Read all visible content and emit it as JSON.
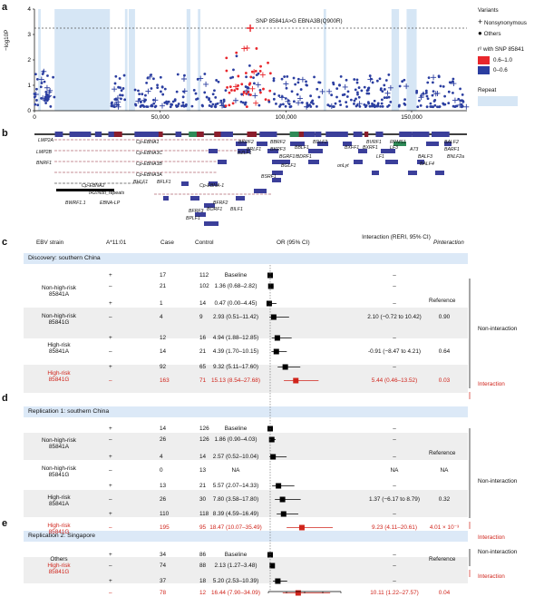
{
  "panels": {
    "a": "a",
    "b": "b",
    "c": "c",
    "d": "d",
    "e": "e"
  },
  "panel_a": {
    "ylabel": "−log10P",
    "yticks": [
      "0",
      "1",
      "2",
      "3",
      "4"
    ],
    "xticks": [
      "0",
      "50,000",
      "100,000",
      "150,000"
    ],
    "snp_label": "SNP 85841A>G EBNA3B(Q900R)",
    "legend_variants_title": "Variants",
    "legend_nonsyn": "Nonsynonymous",
    "legend_others": "Others",
    "legend_r2_title": "r² with SNP 85841",
    "legend_r2_high": "0.6–1.0",
    "legend_r2_low": "0–0.6",
    "legend_repeat": "Repeat",
    "colors": {
      "high": "#e8262c",
      "low": "#2b3ea0",
      "repeat": "#d6e6f5",
      "gene": "#3b3f9a"
    }
  },
  "panel_b": {
    "genes": [
      "LMP2A",
      "LMP2B",
      "BNRF1",
      "Cp-EBNA1",
      "Cp-EBNA3C",
      "Cp-EBNA3B",
      "Cp-EBNA3A",
      "Cp-EBNA2",
      "BHLF1",
      "BFLF1",
      "IR2/NotI_repeats",
      "Cp-EBNA-1",
      "BWRF1.1",
      "EBNA-LP",
      "BFRF2",
      "BFRF3",
      "BORF1",
      "BILF1",
      "BPLF1",
      "BSRF1",
      "BKRF2",
      "BBRF2",
      "BBLF1",
      "BRLF1",
      "BKRF3",
      "BZLF1",
      "BGRF1/BDRF1",
      "BALF2",
      "BGLF1",
      "BDLF2",
      "BVRF1",
      "BXRF1",
      "RPMS1",
      "LF3",
      "BXFF1",
      "onLyt",
      "LF1",
      "A73",
      "BALF3",
      "BALF4",
      "BARF1",
      "BNLF2a"
    ]
  },
  "table_header": {
    "strain": "EBV strain",
    "allele": "A*11:01",
    "case": "Case",
    "control": "Control",
    "or": "OR (95% CI)",
    "interaction": "Interaction (RERI, 95% CI)",
    "p": "Pinteraction"
  },
  "forest_axis": {
    "ticks": [
      "0",
      "10",
      "20",
      "30",
      "40"
    ],
    "range": [
      0,
      40
    ]
  },
  "sections": [
    {
      "title": "Discovery: southern China"
    },
    {
      "title": "Replication 1: southern China"
    },
    {
      "title": "Replication 2: Singapore"
    }
  ],
  "group_labels": {
    "nh_a": "Non-high-risk\n85841A",
    "nh_g": "Non-high-risk\n85841G",
    "h_a": "High-risk\n85841A",
    "h_g": "High-risk\n85841G",
    "others": "Others"
  },
  "side_labels": {
    "noninteraction": "Non-interaction",
    "interaction": "Interaction",
    "reference": "Reference"
  },
  "rows": [
    {
      "sec": 0,
      "allele": "+",
      "case": "17",
      "control": "112",
      "or": "Baseline",
      "inter": "–",
      "p": "",
      "est": 1,
      "lo": 1,
      "hi": 1,
      "red": false
    },
    {
      "sec": 0,
      "allele": "–",
      "case": "21",
      "control": "102",
      "or": "1.36 (0.68–2.82)",
      "inter": "–",
      "p": "",
      "est": 1.36,
      "lo": 0.68,
      "hi": 2.82,
      "red": false
    },
    {
      "sec": 0,
      "allele": "+",
      "case": "1",
      "control": "14",
      "or": "0.47 (0.00–4.45)",
      "inter": "–",
      "p": "",
      "est": 0.47,
      "lo": 0,
      "hi": 4.45,
      "red": false
    },
    {
      "sec": 0,
      "allele": "–",
      "case": "4",
      "control": "9",
      "or": "2.93 (0.51–11.42)",
      "inter": "2.10 (−0.72 to 10.42)",
      "p": "0.90",
      "est": 2.93,
      "lo": 0.51,
      "hi": 11.42,
      "red": false
    },
    {
      "sec": 0,
      "allele": "+",
      "case": "12",
      "control": "16",
      "or": "4.94 (1.88–12.85)",
      "inter": "–",
      "p": "",
      "est": 4.94,
      "lo": 1.88,
      "hi": 12.85,
      "red": false
    },
    {
      "sec": 0,
      "allele": "–",
      "case": "14",
      "control": "21",
      "or": "4.39 (1.70–10.15)",
      "inter": "-0.91 (−8.47 to 4.21)",
      "p": "0.64",
      "est": 4.39,
      "lo": 1.7,
      "hi": 10.15,
      "red": false
    },
    {
      "sec": 0,
      "allele": "+",
      "case": "92",
      "control": "65",
      "or": "9.32 (5.11–17.60)",
      "inter": "–",
      "p": "",
      "est": 9.32,
      "lo": 5.11,
      "hi": 17.6,
      "red": false
    },
    {
      "sec": 0,
      "allele": "–",
      "case": "163",
      "control": "71",
      "or": "15.13 (8.54–27.68)",
      "inter": "5.44 (0.46–13.52)",
      "p": "0.03",
      "est": 15.13,
      "lo": 8.54,
      "hi": 27.68,
      "red": true
    },
    {
      "sec": 1,
      "allele": "+",
      "case": "14",
      "control": "126",
      "or": "Baseline",
      "inter": "–",
      "p": "",
      "est": 1,
      "lo": 1,
      "hi": 1,
      "red": false
    },
    {
      "sec": 1,
      "allele": "–",
      "case": "26",
      "control": "126",
      "or": "1.86 (0.90–4.03)",
      "inter": "–",
      "p": "",
      "est": 1.86,
      "lo": 0.9,
      "hi": 4.03,
      "red": false
    },
    {
      "sec": 1,
      "allele": "+",
      "case": "4",
      "control": "14",
      "or": "2.57 (0.52–10.04)",
      "inter": "–",
      "p": "",
      "est": 2.57,
      "lo": 0.52,
      "hi": 10.04,
      "red": false
    },
    {
      "sec": 1,
      "allele": "–",
      "case": "0",
      "control": "13",
      "or": "NA",
      "inter": "NA",
      "p": "NA",
      "est": null,
      "lo": null,
      "hi": null,
      "red": false
    },
    {
      "sec": 1,
      "allele": "+",
      "case": "13",
      "control": "21",
      "or": "5.57 (2.07–14.33)",
      "inter": "–",
      "p": "",
      "est": 5.57,
      "lo": 2.07,
      "hi": 14.33,
      "red": false
    },
    {
      "sec": 1,
      "allele": "–",
      "case": "26",
      "control": "30",
      "or": "7.80 (3.58–17.80)",
      "inter": "1.37 (−6.17 to 8.79)",
      "p": "0.32",
      "est": 7.8,
      "lo": 3.58,
      "hi": 17.8,
      "red": false
    },
    {
      "sec": 1,
      "allele": "+",
      "case": "110",
      "control": "118",
      "or": "8.39 (4.59–16.49)",
      "inter": "–",
      "p": "",
      "est": 8.39,
      "lo": 4.59,
      "hi": 16.49,
      "red": false
    },
    {
      "sec": 1,
      "allele": "–",
      "case": "195",
      "control": "95",
      "or": "18.47 (10.07–35.49)",
      "inter": "9.23 (4.11–20.61)",
      "p": "4.01 × 10⁻³",
      "est": 18.47,
      "lo": 10.07,
      "hi": 35.49,
      "red": true
    },
    {
      "sec": 2,
      "allele": "+",
      "case": "34",
      "control": "86",
      "or": "Baseline",
      "inter": "–",
      "p": "",
      "est": 1,
      "lo": 1,
      "hi": 1,
      "red": false
    },
    {
      "sec": 2,
      "allele": "–",
      "case": "74",
      "control": "88",
      "or": "2.13 (1.27–3.48)",
      "inter": "–",
      "p": "",
      "est": 2.13,
      "lo": 1.27,
      "hi": 3.48,
      "red": false
    },
    {
      "sec": 2,
      "allele": "+",
      "case": "37",
      "control": "18",
      "or": "5.20 (2.53–10.39)",
      "inter": "–",
      "p": "",
      "est": 5.2,
      "lo": 2.53,
      "hi": 10.39,
      "red": false
    },
    {
      "sec": 2,
      "allele": "–",
      "case": "78",
      "control": "12",
      "or": "16.44 (7.90–34.09)",
      "inter": "10.11 (1.22–27.57)",
      "p": "0.04",
      "est": 16.44,
      "lo": 7.9,
      "hi": 34.09,
      "red": true
    }
  ],
  "chart_data": {
    "type": "scatter",
    "title": "",
    "xlabel": "",
    "ylabel": "−log10P",
    "xlim": [
      0,
      172000
    ],
    "ylim": [
      0,
      4
    ],
    "threshold_label": "SNP 85841A>G EBNA3B(Q900R)",
    "repeat_regions": [
      [
        1500,
        2500
      ],
      [
        8000,
        30000
      ],
      [
        36000,
        37000
      ],
      [
        37500,
        40000
      ],
      [
        60500,
        62000
      ],
      [
        65000,
        66000
      ],
      [
        115000,
        116000
      ],
      [
        142000,
        145000
      ],
      [
        148000,
        152000
      ]
    ],
    "highlight_point": {
      "x": 85841,
      "y": 3.25
    },
    "forest": [
      {
        "group": "Discovery",
        "or": [
          1,
          1.36,
          0.47,
          2.93,
          4.94,
          4.39,
          9.32,
          15.13
        ]
      },
      {
        "group": "Replication 1",
        "or": [
          1,
          1.86,
          2.57,
          null,
          5.57,
          7.8,
          8.39,
          18.47
        ]
      },
      {
        "group": "Replication 2",
        "or": [
          1,
          2.13,
          5.2,
          16.44
        ]
      }
    ]
  }
}
